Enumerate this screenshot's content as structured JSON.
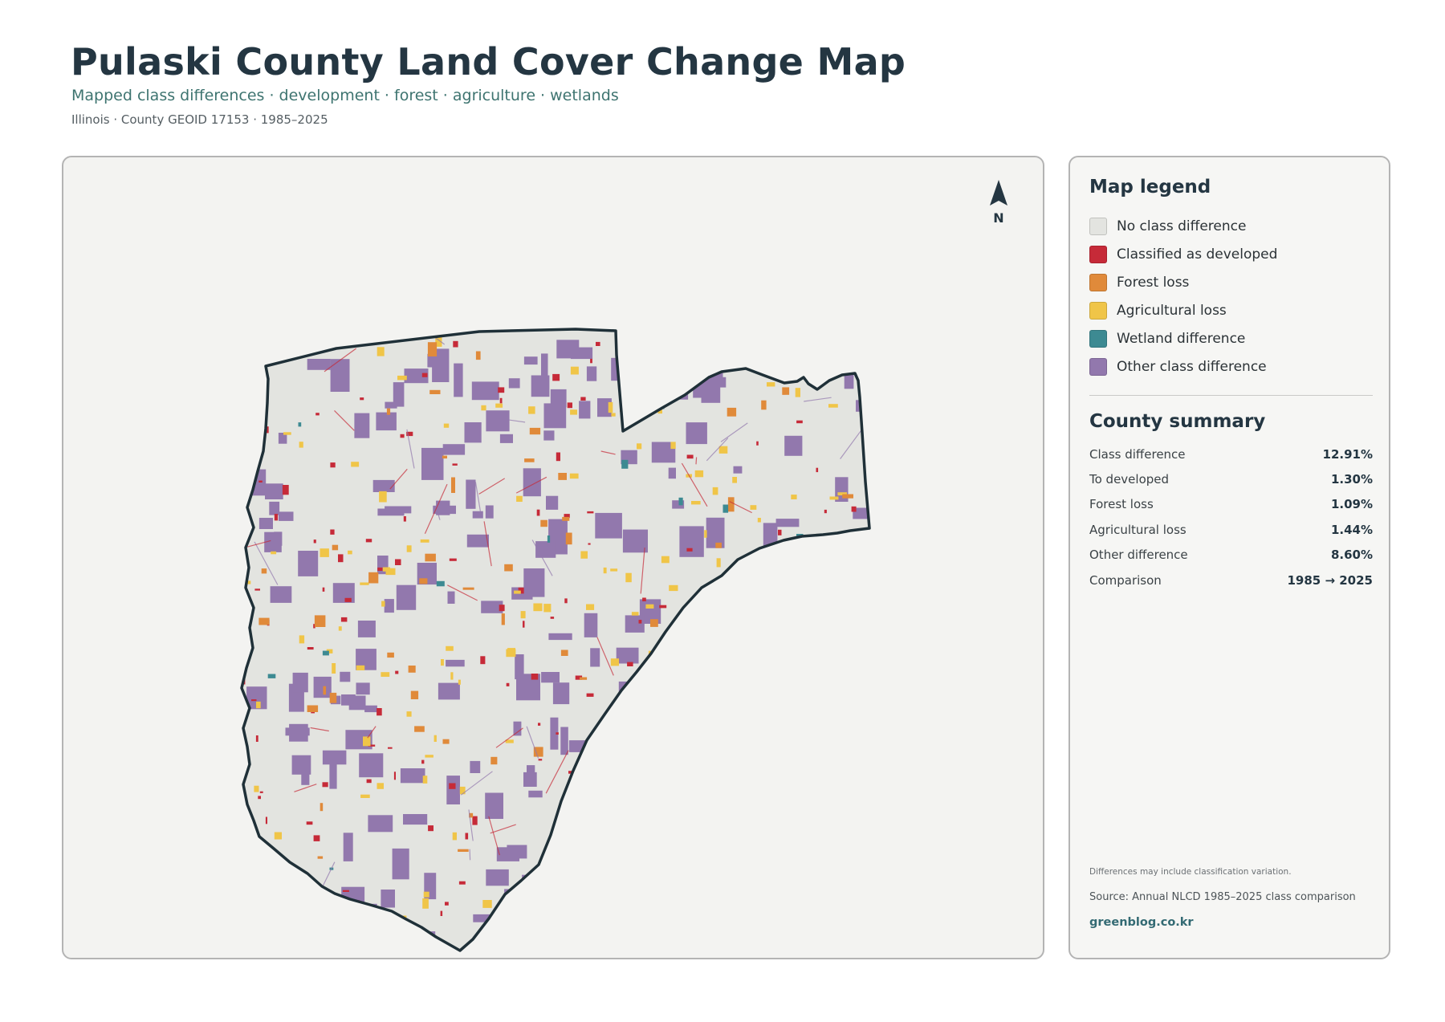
{
  "header": {
    "title": "Pulaski County Land Cover Change Map",
    "subtitle": "Mapped class differences · development · forest · agriculture · wetlands",
    "meta": "Illinois · County GEOID 17153 · 1985–2025"
  },
  "map": {
    "north_label": "N",
    "colors": {
      "county_fill": "#e3e4e0",
      "county_outline": "#1f3038",
      "developed": "#c62a38",
      "forest_loss": "#e08a3a",
      "agricultural_loss": "#f0c548",
      "wetland": "#3d8a92",
      "other": "#9278ad"
    }
  },
  "legend": {
    "title": "Map legend",
    "items": [
      {
        "label": "No class difference",
        "color": "#e3e4e0"
      },
      {
        "label": "Classified as developed",
        "color": "#c62a38"
      },
      {
        "label": "Forest loss",
        "color": "#e08a3a"
      },
      {
        "label": "Agricultural loss",
        "color": "#f0c548"
      },
      {
        "label": "Wetland difference",
        "color": "#3d8a92"
      },
      {
        "label": "Other class difference",
        "color": "#9278ad"
      }
    ]
  },
  "summary": {
    "title": "County summary",
    "rows": [
      {
        "key": "Class difference",
        "value": "12.91%"
      },
      {
        "key": "To developed",
        "value": "1.30%"
      },
      {
        "key": "Forest loss",
        "value": "1.09%"
      },
      {
        "key": "Agricultural loss",
        "value": "1.44%"
      },
      {
        "key": "Other difference",
        "value": "8.60%"
      },
      {
        "key": "Comparison",
        "value": "1985 → 2025"
      }
    ]
  },
  "footer": {
    "note": "Differences may include classification variation.",
    "source": "Source: Annual NLCD 1985–2025 class comparison",
    "site": "greenblog.co.kr"
  }
}
